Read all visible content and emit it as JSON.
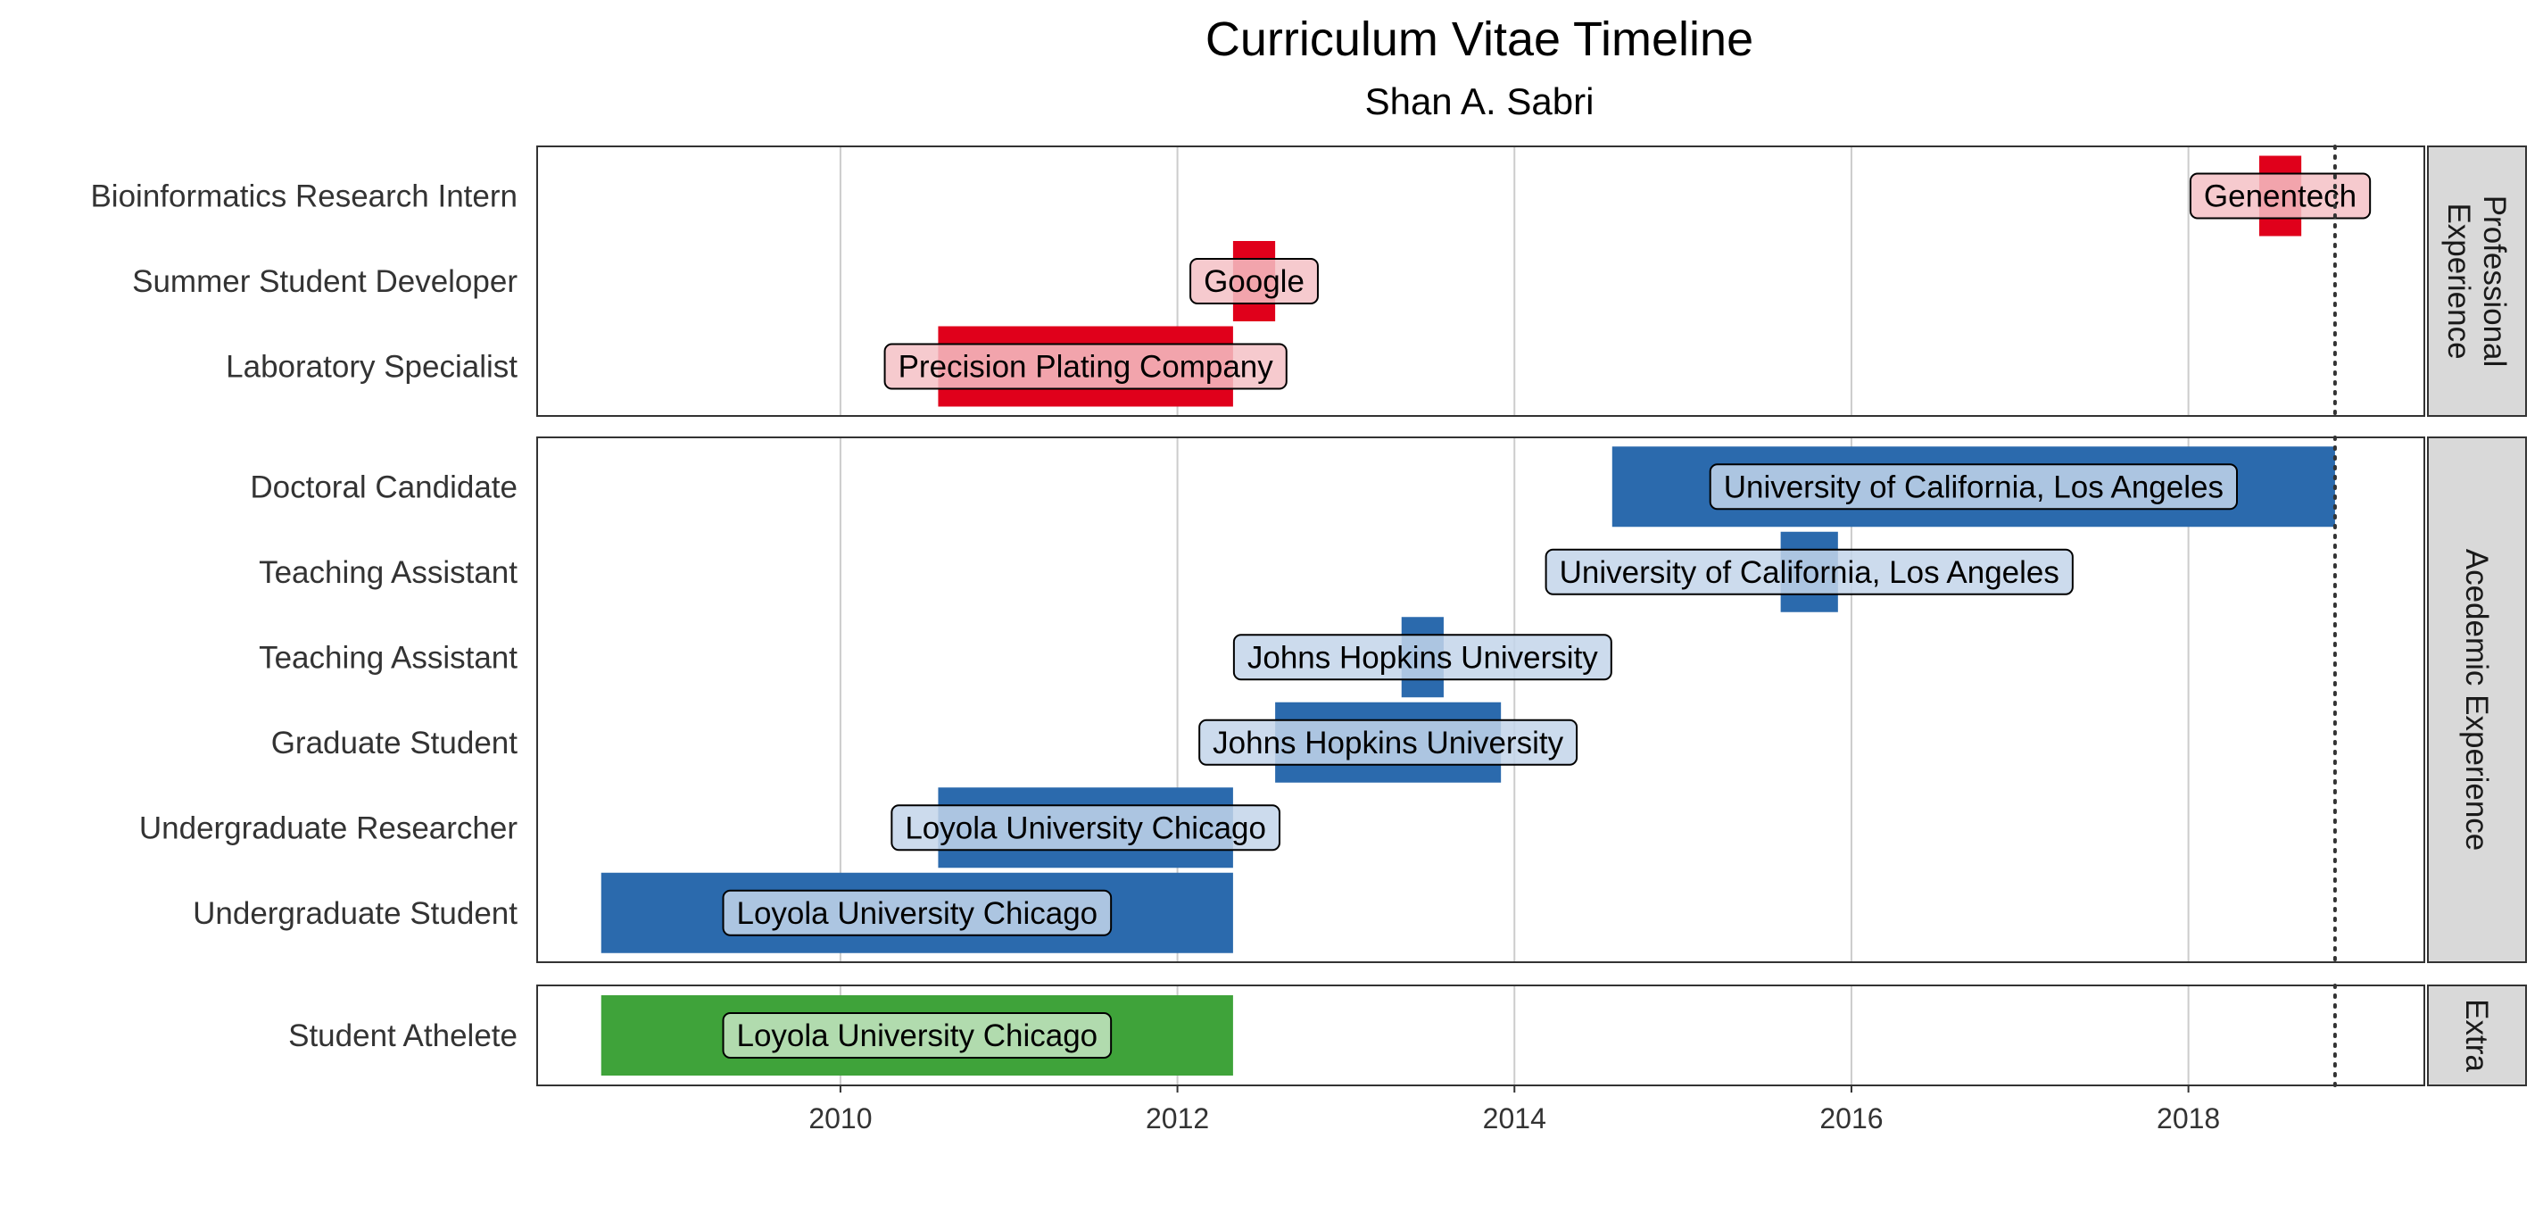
{
  "chart_data": {
    "type": "timeline",
    "title": "Curriculum Vitae Timeline",
    "subtitle": "Shan A. Sabri",
    "xlim": [
      2008.2,
      2019.4
    ],
    "x_ticks": [
      2010,
      2012,
      2014,
      2016,
      2018
    ],
    "reference_line": 2018.87,
    "grid": "vertical",
    "facets": [
      {
        "name": "Professional Experience",
        "strip_lines": [
          "Professional",
          "Experience"
        ],
        "color": "#e0001b",
        "label_fill": "#f4c1c6",
        "rows": [
          {
            "role": "Bioinformatics Research Intern",
            "org": "Genentech",
            "start": 2018.42,
            "end": 2018.67
          },
          {
            "role": "Summer Student Developer",
            "org": "Google",
            "start": 2012.33,
            "end": 2012.58
          },
          {
            "role": "Laboratory Specialist",
            "org": "Precision Plating Company",
            "start": 2010.58,
            "end": 2012.33
          }
        ]
      },
      {
        "name": "Acedemic Experience",
        "strip_lines": [
          "Acedemic Experience"
        ],
        "color": "#2b6aad",
        "label_fill": "#c3d5ea",
        "rows": [
          {
            "role": "Doctoral Candidate",
            "org": "University of California, Los Angeles",
            "start": 2014.58,
            "end": 2018.87
          },
          {
            "role": "Teaching Assistant",
            "org": "University of California, Los Angeles",
            "start": 2015.58,
            "end": 2015.92
          },
          {
            "role": "Teaching Assistant",
            "org": "Johns Hopkins University",
            "start": 2013.33,
            "end": 2013.58
          },
          {
            "role": "Graduate Student",
            "org": "Johns Hopkins University",
            "start": 2012.58,
            "end": 2013.92
          },
          {
            "role": "Undergraduate Researcher",
            "org": "Loyola University Chicago",
            "start": 2010.58,
            "end": 2012.33
          },
          {
            "role": "Undergraduate Student",
            "org": "Loyola University Chicago",
            "start": 2008.58,
            "end": 2012.33
          }
        ]
      },
      {
        "name": "Extra",
        "strip_lines": [
          "Extra"
        ],
        "color": "#3fa33a",
        "label_fill": "#c6e5c3",
        "rows": [
          {
            "role": "Student Athelete",
            "org": "Loyola University Chicago",
            "start": 2008.58,
            "end": 2012.33
          }
        ]
      }
    ]
  }
}
